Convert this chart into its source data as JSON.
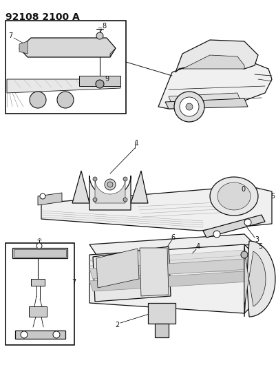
{
  "title": "92108 2100 A",
  "bg": "#f5f5f0",
  "fg": "#111111",
  "fig_w": 4.02,
  "fig_h": 5.33,
  "dpi": 100
}
